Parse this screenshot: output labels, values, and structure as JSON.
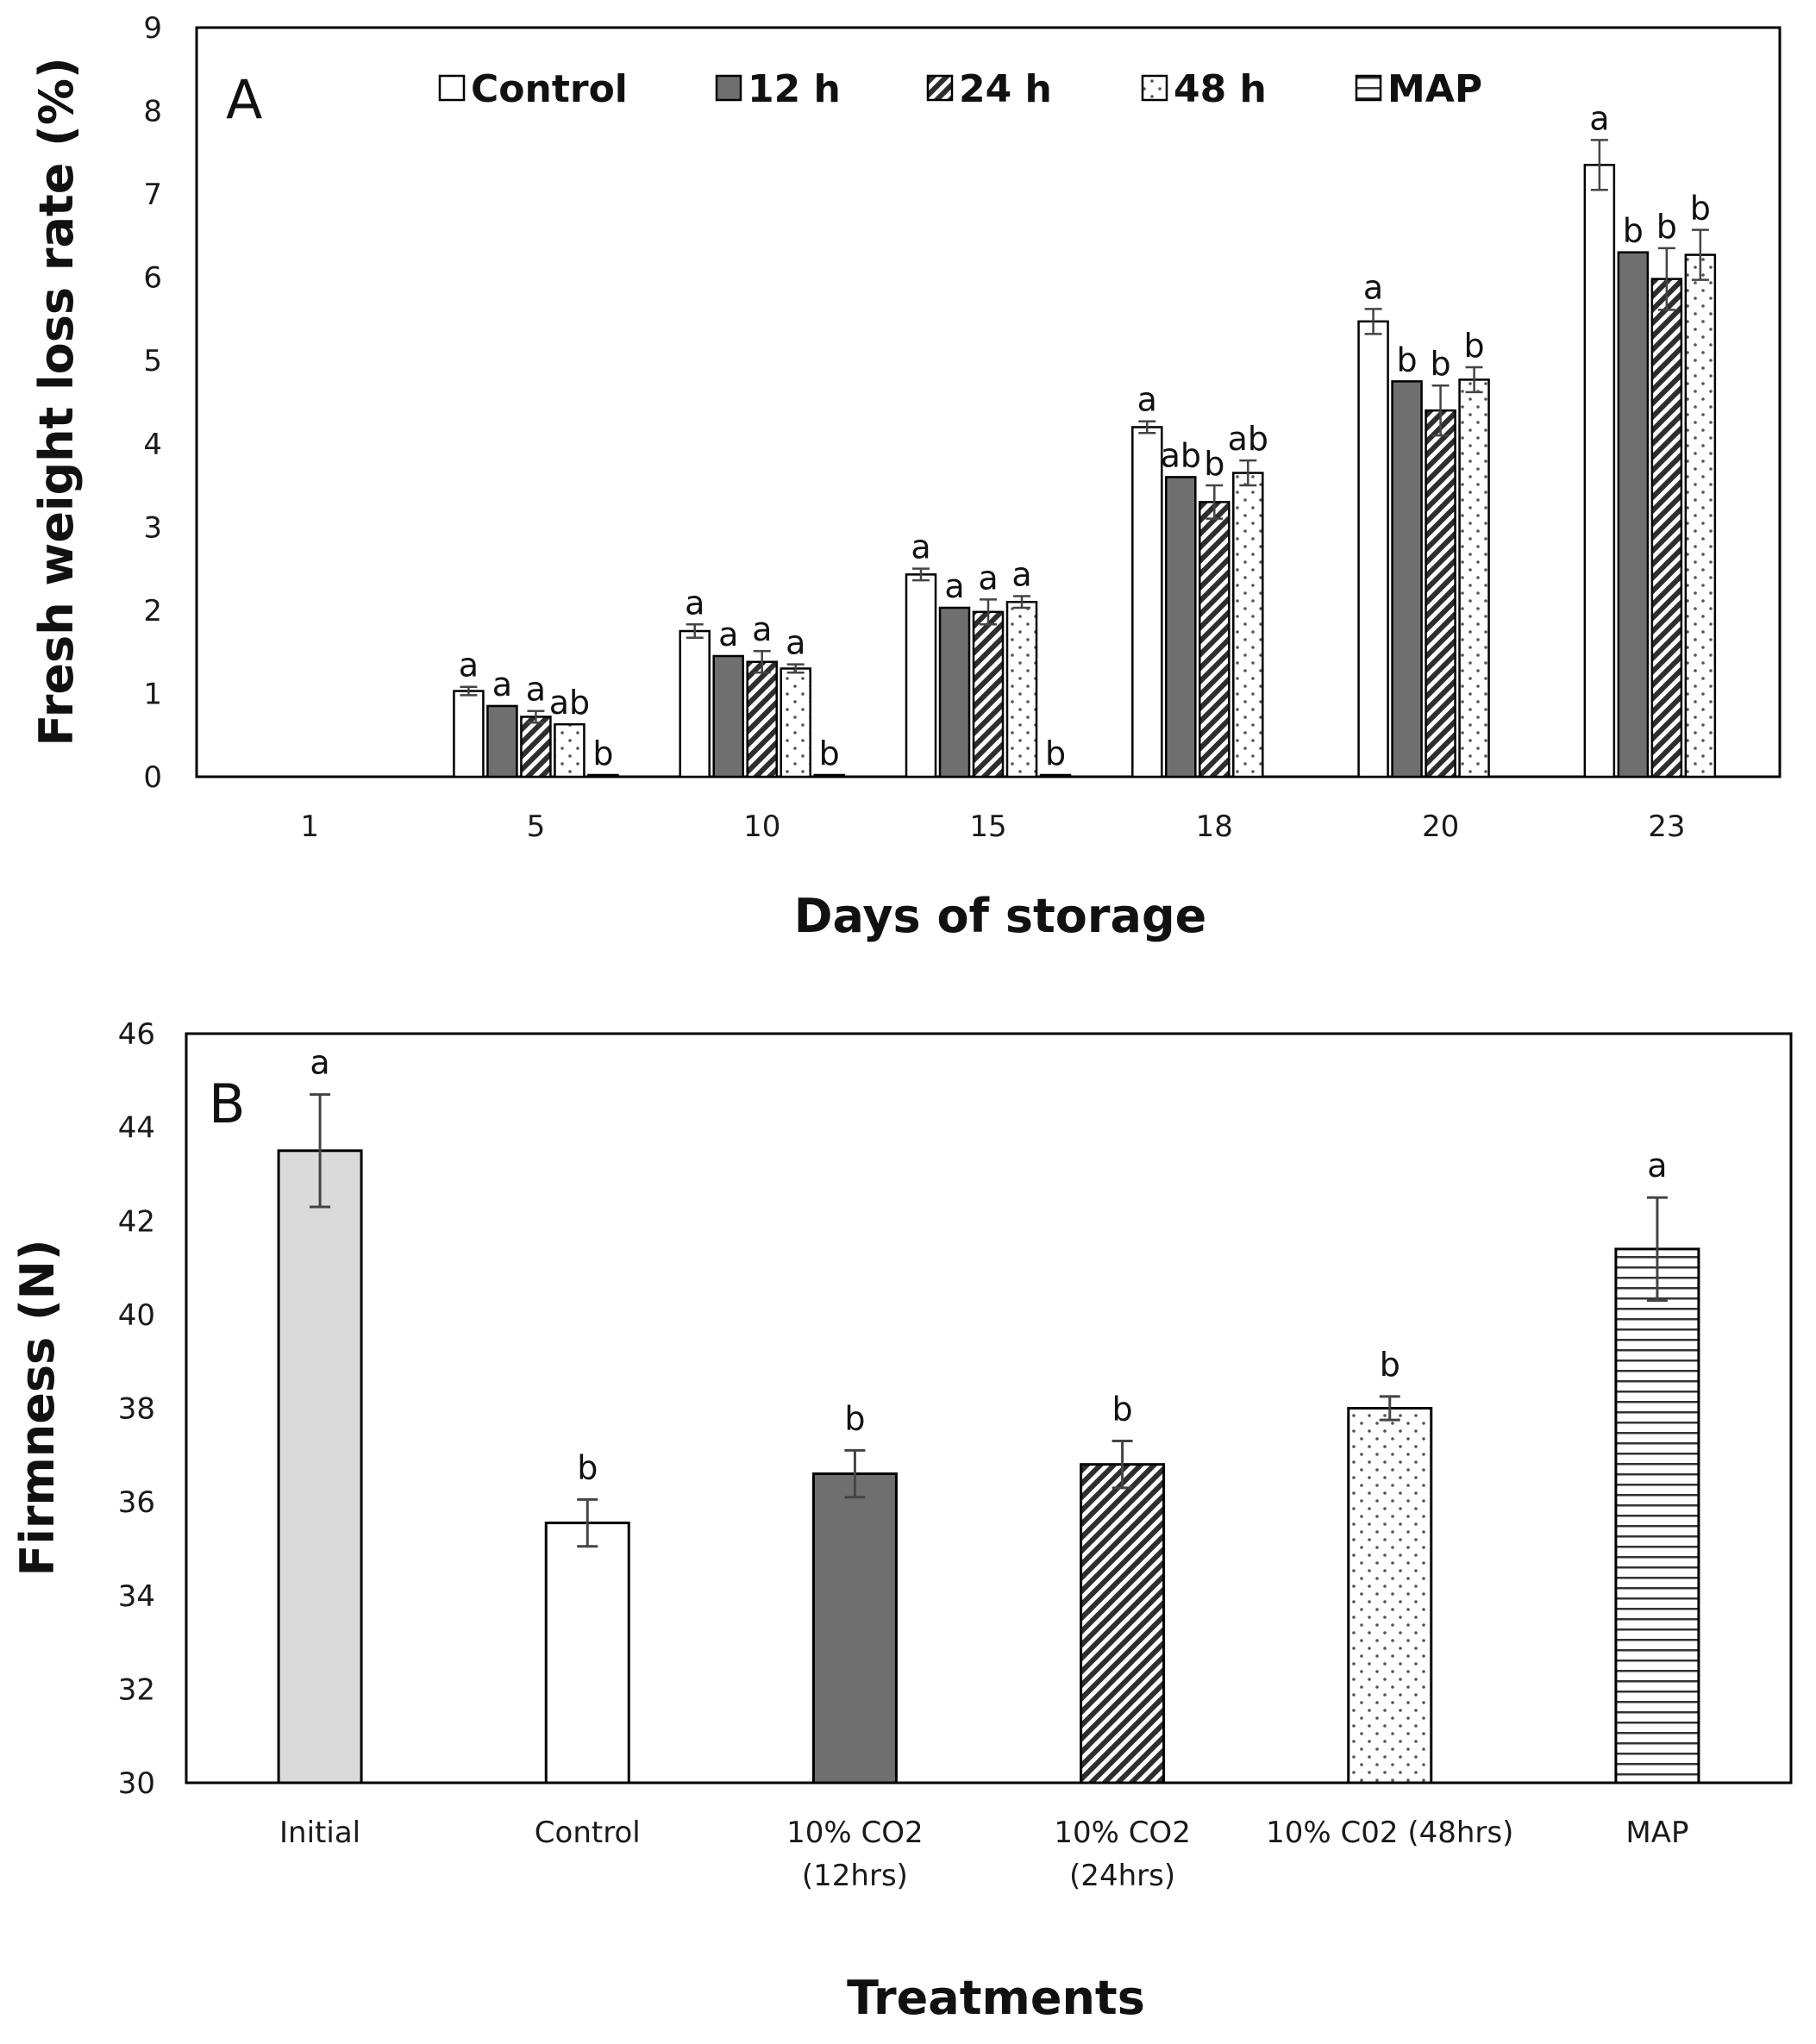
{
  "chart_data": [
    {
      "type": "bar",
      "panel_label": "A",
      "title": "",
      "xlabel": "Days of storage",
      "ylabel": "Fresh weight loss rate (%)",
      "ylim": [
        0,
        9
      ],
      "yticks": [
        0,
        1,
        2,
        3,
        4,
        5,
        6,
        7,
        8,
        9
      ],
      "grid": false,
      "legend_position": "top",
      "categories": [
        "1",
        "5",
        "10",
        "15",
        "18",
        "20",
        "23"
      ],
      "series": [
        {
          "name": "Control",
          "pattern": "white",
          "values": [
            0,
            1.03,
            1.75,
            2.43,
            4.2,
            5.47,
            7.35
          ],
          "errors": [
            0,
            0.05,
            0.08,
            0.07,
            0.07,
            0.15,
            0.3
          ],
          "letters": [
            "",
            "a",
            "a",
            "a",
            "a",
            "a",
            "a"
          ]
        },
        {
          "name": "12 h",
          "pattern": "dark",
          "values": [
            0,
            0.85,
            1.45,
            2.03,
            3.6,
            4.75,
            6.3
          ],
          "errors": [
            0,
            0,
            0,
            0,
            0,
            0,
            0
          ],
          "letters": [
            "",
            "a",
            "a",
            "a",
            "ab",
            "b",
            "b"
          ]
        },
        {
          "name": "24 h",
          "pattern": "hatch",
          "values": [
            0,
            0.72,
            1.38,
            1.98,
            3.3,
            4.4,
            5.98
          ],
          "errors": [
            0,
            0.07,
            0.13,
            0.15,
            0.2,
            0.3,
            0.37
          ],
          "letters": [
            "",
            "a",
            "a",
            "a",
            "b",
            "b",
            "b"
          ]
        },
        {
          "name": "48 h",
          "pattern": "dots",
          "values": [
            0,
            0.63,
            1.3,
            2.1,
            3.65,
            4.77,
            6.27
          ],
          "errors": [
            0,
            0,
            0.05,
            0.07,
            0.15,
            0.15,
            0.3
          ],
          "letters": [
            "",
            "ab",
            "a",
            "a",
            "ab",
            "b",
            "b"
          ]
        },
        {
          "name": "MAP",
          "pattern": "hlines",
          "values": [
            0,
            0.02,
            0.02,
            0.02,
            null,
            null,
            null
          ],
          "errors": [
            0,
            0,
            0,
            0,
            0,
            0,
            0
          ],
          "letters": [
            "",
            "b",
            "b",
            "b",
            "",
            "",
            ""
          ]
        }
      ]
    },
    {
      "type": "bar",
      "panel_label": "B",
      "title": "",
      "xlabel": "Treatments",
      "ylabel": "Firmness (N)",
      "ylim": [
        30,
        46
      ],
      "yticks": [
        30,
        32,
        34,
        36,
        38,
        40,
        42,
        44,
        46
      ],
      "grid": false,
      "categories": [
        "Initial",
        "Control",
        "10% CO2 (12hrs)",
        "10% CO2 (24hrs)",
        "10% C02 (48hrs)",
        "MAP"
      ],
      "category_lines": [
        [
          "Initial"
        ],
        [
          "Control"
        ],
        [
          "10% CO2",
          "(12hrs)"
        ],
        [
          "10% CO2",
          "(24hrs)"
        ],
        [
          "10% C02 (48hrs)"
        ],
        [
          "MAP"
        ]
      ],
      "patterns": [
        "lightgray",
        "white",
        "dark",
        "hatch",
        "dots",
        "hlines"
      ],
      "values": [
        43.5,
        35.55,
        36.6,
        36.8,
        38.0,
        41.4
      ],
      "errors": [
        1.2,
        0.5,
        0.5,
        0.5,
        0.25,
        1.1
      ],
      "letters": [
        "a",
        "b",
        "b",
        "b",
        "b",
        "a"
      ]
    }
  ]
}
